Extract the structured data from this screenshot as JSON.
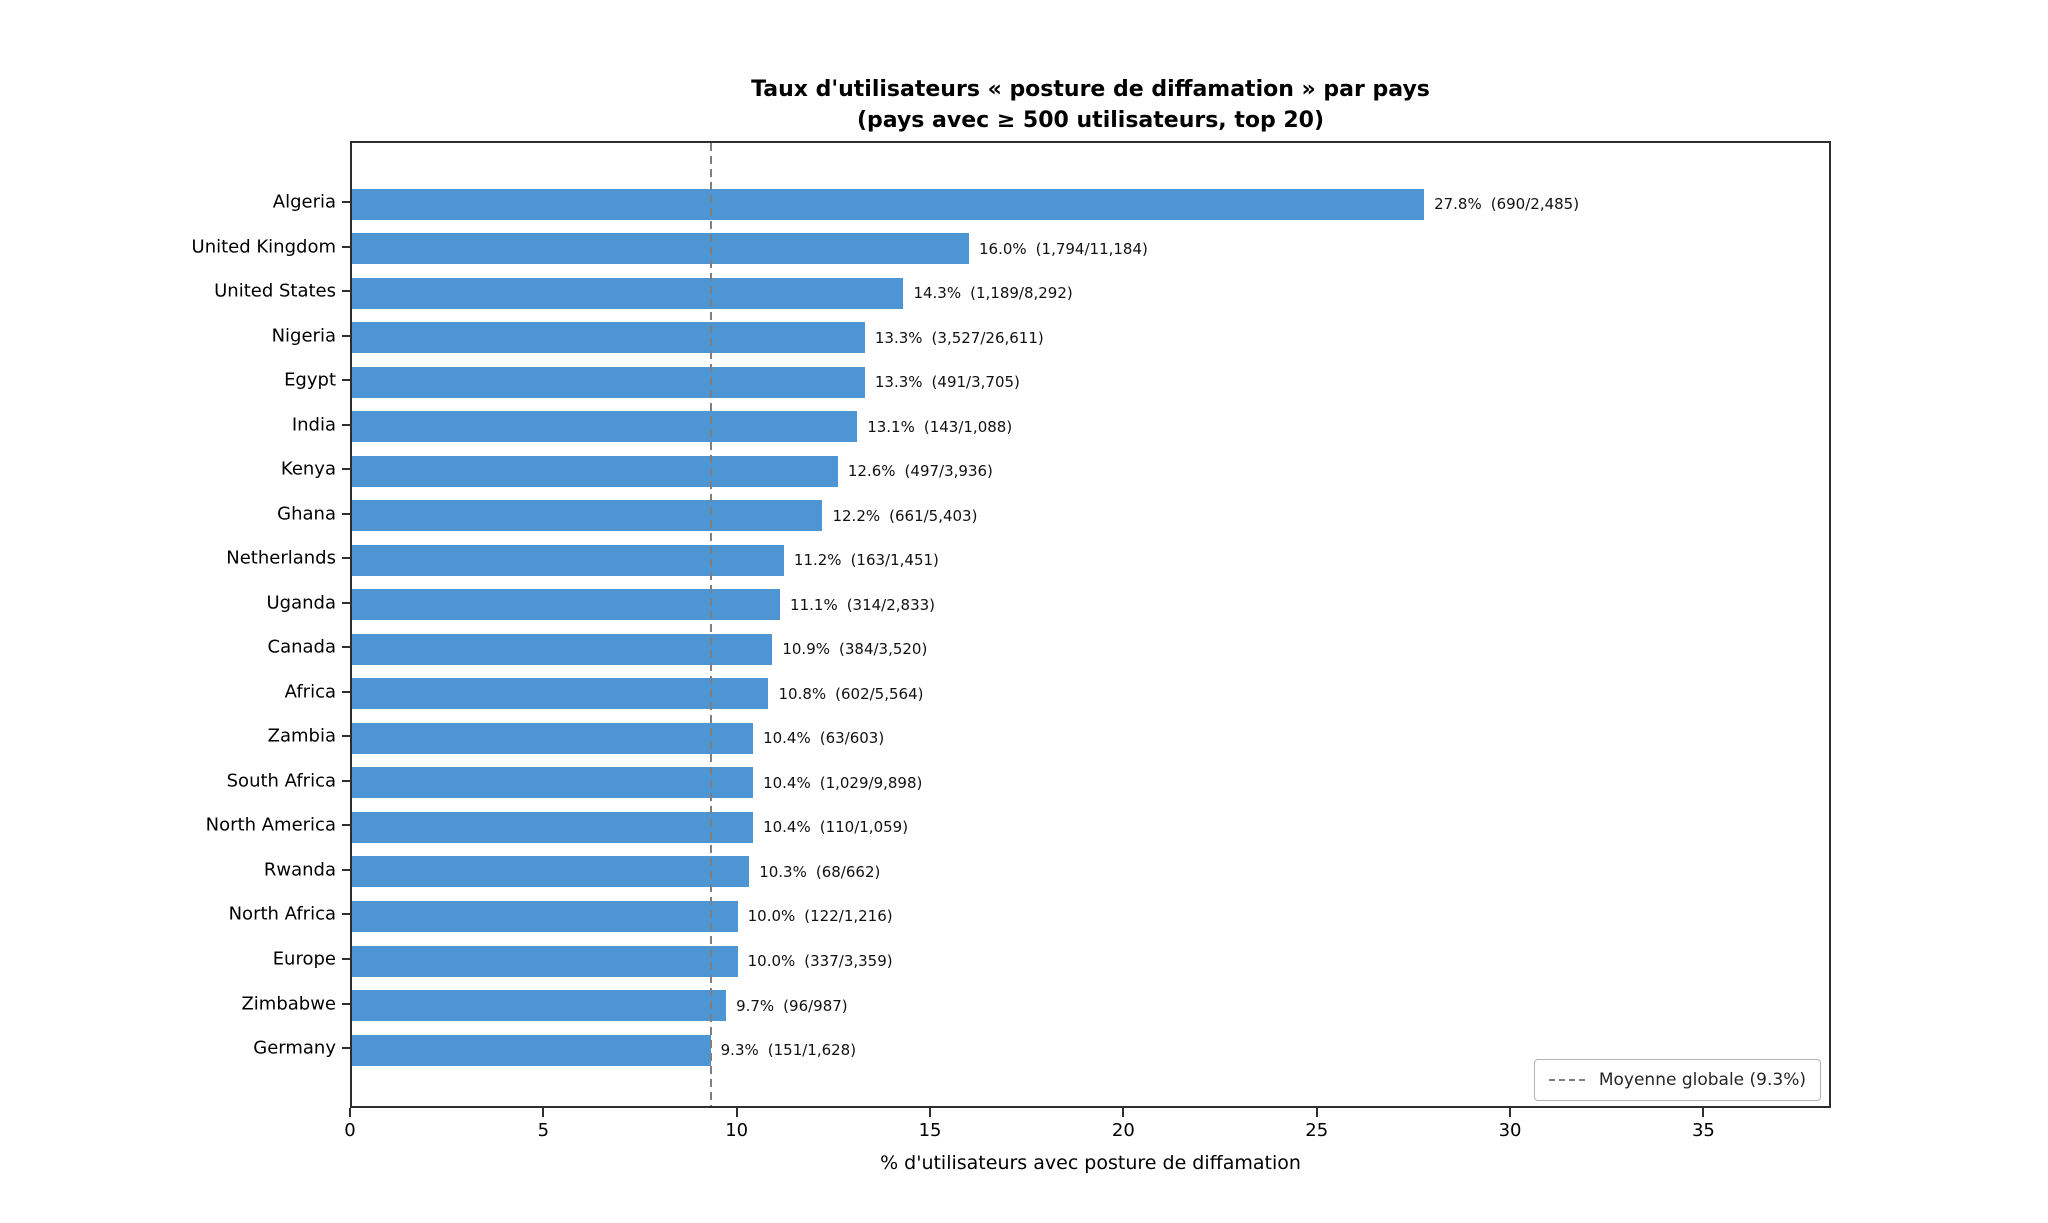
{
  "chart_data": {
    "type": "bar",
    "orientation": "horizontal",
    "title": "Taux d'utilisateurs « posture de diffamation » par pays",
    "subtitle": "(pays avec ≥ 500 utilisateurs, top 20)",
    "xlabel": "% d'utilisateurs avec posture de diffamation",
    "xlim": [
      0,
      38.3
    ],
    "x_ticks": [
      0,
      5,
      10,
      15,
      20,
      25,
      30,
      35
    ],
    "grid": false,
    "bar_color": "#4e96d3",
    "mean_line": {
      "value": 9.3,
      "color": "#7f7f7f",
      "style": "dashed",
      "legend_label": "Moyenne globale (9.3%)",
      "legend_position": "lower right"
    },
    "categories": [
      "Algeria",
      "United Kingdom",
      "United States",
      "Nigeria",
      "Egypt",
      "India",
      "Kenya",
      "Ghana",
      "Netherlands",
      "Uganda",
      "Canada",
      "Africa",
      "Zambia",
      "South Africa",
      "North America",
      "Rwanda",
      "North Africa",
      "Europe",
      "Zimbabwe",
      "Germany"
    ],
    "values": [
      27.8,
      16.0,
      14.3,
      13.3,
      13.3,
      13.1,
      12.6,
      12.2,
      11.2,
      11.1,
      10.9,
      10.8,
      10.4,
      10.4,
      10.4,
      10.3,
      10.0,
      10.0,
      9.7,
      9.3
    ],
    "items": [
      {
        "country": "Algeria",
        "value": 27.8,
        "pct": "27.8%",
        "counts": "(690/2,485)"
      },
      {
        "country": "United Kingdom",
        "value": 16.0,
        "pct": "16.0%",
        "counts": "(1,794/11,184)"
      },
      {
        "country": "United States",
        "value": 14.3,
        "pct": "14.3%",
        "counts": "(1,189/8,292)"
      },
      {
        "country": "Nigeria",
        "value": 13.3,
        "pct": "13.3%",
        "counts": "(3,527/26,611)"
      },
      {
        "country": "Egypt",
        "value": 13.3,
        "pct": "13.3%",
        "counts": "(491/3,705)"
      },
      {
        "country": "India",
        "value": 13.1,
        "pct": "13.1%",
        "counts": "(143/1,088)"
      },
      {
        "country": "Kenya",
        "value": 12.6,
        "pct": "12.6%",
        "counts": "(497/3,936)"
      },
      {
        "country": "Ghana",
        "value": 12.2,
        "pct": "12.2%",
        "counts": "(661/5,403)"
      },
      {
        "country": "Netherlands",
        "value": 11.2,
        "pct": "11.2%",
        "counts": "(163/1,451)"
      },
      {
        "country": "Uganda",
        "value": 11.1,
        "pct": "11.1%",
        "counts": "(314/2,833)"
      },
      {
        "country": "Canada",
        "value": 10.9,
        "pct": "10.9%",
        "counts": "(384/3,520)"
      },
      {
        "country": "Africa",
        "value": 10.8,
        "pct": "10.8%",
        "counts": "(602/5,564)"
      },
      {
        "country": "Zambia",
        "value": 10.4,
        "pct": "10.4%",
        "counts": "(63/603)"
      },
      {
        "country": "South Africa",
        "value": 10.4,
        "pct": "10.4%",
        "counts": "(1,029/9,898)"
      },
      {
        "country": "North America",
        "value": 10.4,
        "pct": "10.4%",
        "counts": "(110/1,059)"
      },
      {
        "country": "Rwanda",
        "value": 10.3,
        "pct": "10.3%",
        "counts": "(68/662)"
      },
      {
        "country": "North Africa",
        "value": 10.0,
        "pct": "10.0%",
        "counts": "(122/1,216)"
      },
      {
        "country": "Europe",
        "value": 10.0,
        "pct": "10.0%",
        "counts": "(337/3,359)"
      },
      {
        "country": "Zimbabwe",
        "value": 9.7,
        "pct": "9.7%",
        "counts": "(96/987)"
      },
      {
        "country": "Germany",
        "value": 9.3,
        "pct": "9.3%",
        "counts": "(151/1,628)"
      }
    ]
  }
}
